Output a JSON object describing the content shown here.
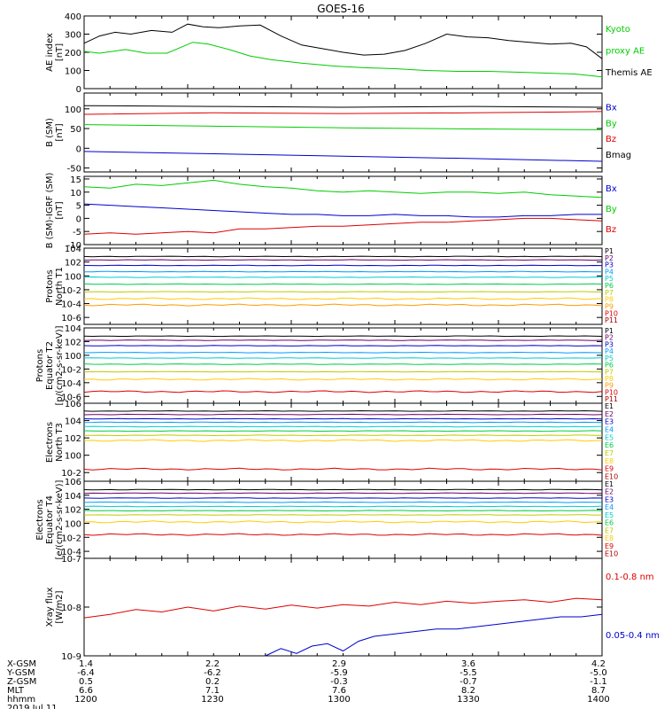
{
  "title": "GOES-16",
  "chart_data": {
    "type": "line",
    "x_time_ticks": [
      "1200",
      "1230",
      "1300",
      "1330",
      "1400"
    ],
    "footer": {
      "row_labels": [
        "X-GSM",
        "Y-GSM",
        "Z-GSM",
        "MLT",
        "hhmm",
        "2019 Jul 11"
      ],
      "columns": [
        [
          "1.4",
          "-6.4",
          "0.5",
          "6.6",
          "1200"
        ],
        [
          "2.2",
          "-6.2",
          "0.2",
          "7.1",
          "1230"
        ],
        [
          "2.9",
          "-5.9",
          "-0.3",
          "7.6",
          "1300"
        ],
        [
          "3.6",
          "-5.5",
          "-0.7",
          "8.2",
          "1330"
        ],
        [
          "4.2",
          "-5.0",
          "-1.1",
          "8.7",
          "1400"
        ]
      ]
    },
    "panels": [
      {
        "ylabel": [
          "AE index",
          "[nT]"
        ],
        "scale": "linear",
        "ylim": [
          0,
          400
        ],
        "ticks": [
          0,
          100,
          200,
          300,
          400
        ],
        "tick_labels": [
          "0",
          "100",
          "200",
          "300",
          "400"
        ],
        "legend": [
          {
            "label": "Kyoto",
            "color": "#00cc00"
          },
          {
            "label": "proxy AE",
            "color": "#00cc00"
          },
          {
            "label": "Themis AE",
            "color": "#000000"
          }
        ],
        "series": [
          {
            "name": "Themis AE",
            "color": "#000000",
            "x": [
              0,
              0.03,
              0.06,
              0.09,
              0.13,
              0.17,
              0.2,
              0.23,
              0.26,
              0.3,
              0.34,
              0.38,
              0.42,
              0.46,
              0.5,
              0.54,
              0.58,
              0.62,
              0.66,
              0.7,
              0.74,
              0.78,
              0.82,
              0.86,
              0.9,
              0.94,
              0.97,
              1
            ],
            "y": [
              250,
              290,
              310,
              300,
              320,
              310,
              355,
              340,
              335,
              345,
              350,
              290,
              240,
              220,
              200,
              185,
              190,
              210,
              250,
              300,
              285,
              280,
              265,
              255,
              245,
              250,
              230,
              165
            ]
          },
          {
            "name": "Kyoto proxy AE",
            "color": "#00cc00",
            "x": [
              0,
              0.03,
              0.08,
              0.12,
              0.16,
              0.21,
              0.24,
              0.28,
              0.32,
              0.36,
              0.42,
              0.48,
              0.54,
              0.6,
              0.66,
              0.72,
              0.78,
              0.84,
              0.9,
              0.95,
              1
            ],
            "y": [
              205,
              195,
              215,
              195,
              195,
              255,
              245,
              215,
              180,
              160,
              140,
              125,
              115,
              110,
              100,
              95,
              95,
              90,
              85,
              80,
              65
            ]
          }
        ]
      },
      {
        "ylabel": [
          "B (SM)",
          "[nT]"
        ],
        "scale": "linear",
        "ylim": [
          -60,
          140
        ],
        "ticks": [
          -50,
          0,
          50,
          100
        ],
        "tick_labels": [
          "-50",
          "0",
          "50",
          "100"
        ],
        "legend": [
          {
            "label": "Bx",
            "color": "#0000cc"
          },
          {
            "label": "By",
            "color": "#00cc00"
          },
          {
            "label": "Bz",
            "color": "#dd0000"
          },
          {
            "label": "Bmag",
            "color": "#000000"
          }
        ],
        "series": [
          {
            "name": "Bmag",
            "color": "#000000",
            "x": [
              0,
              0.25,
              0.5,
              0.75,
              1
            ],
            "y": [
              108,
              106,
              104,
              106,
              104
            ]
          },
          {
            "name": "Bz",
            "color": "#dd0000",
            "x": [
              0,
              0.25,
              0.5,
              0.75,
              1
            ],
            "y": [
              86,
              90,
              88,
              90,
              93
            ]
          },
          {
            "name": "By",
            "color": "#00cc00",
            "x": [
              0,
              0.25,
              0.5,
              0.75,
              1
            ],
            "y": [
              60,
              56,
              52,
              49,
              47
            ]
          },
          {
            "name": "Bx",
            "color": "#0000cc",
            "x": [
              0,
              0.25,
              0.5,
              0.75,
              1
            ],
            "y": [
              -8,
              -14,
              -20,
              -26,
              -33
            ]
          }
        ]
      },
      {
        "ylabel": [
          "B (SM)-IGRF (SM)",
          "[nT]"
        ],
        "scale": "linear",
        "ylim": [
          -10,
          16
        ],
        "ticks": [
          -10,
          -5,
          0,
          5,
          10,
          15
        ],
        "tick_labels": [
          "-10",
          "-5",
          "0",
          "5",
          "10",
          "15"
        ],
        "legend": [
          {
            "label": "Bx",
            "color": "#0000cc"
          },
          {
            "label": "By",
            "color": "#00cc00"
          },
          {
            "label": "Bz",
            "color": "#dd0000"
          }
        ],
        "series": [
          {
            "name": "By",
            "color": "#00cc00",
            "x": [
              0,
              0.05,
              0.1,
              0.15,
              0.2,
              0.25,
              0.3,
              0.35,
              0.4,
              0.45,
              0.5,
              0.55,
              0.6,
              0.65,
              0.7,
              0.75,
              0.8,
              0.85,
              0.9,
              0.95,
              1
            ],
            "y": [
              12,
              11.5,
              13,
              12.5,
              13.5,
              14.5,
              13,
              12,
              11.5,
              10.5,
              10,
              10.5,
              10,
              9.5,
              10,
              10,
              9.5,
              10,
              9,
              8.5,
              8
            ]
          },
          {
            "name": "Bx",
            "color": "#0000cc",
            "x": [
              0,
              0.05,
              0.1,
              0.15,
              0.2,
              0.25,
              0.3,
              0.35,
              0.4,
              0.45,
              0.5,
              0.55,
              0.6,
              0.65,
              0.7,
              0.75,
              0.8,
              0.85,
              0.9,
              0.95,
              1
            ],
            "y": [
              5.5,
              5,
              4.5,
              4,
              3.5,
              3,
              2.5,
              2,
              1.5,
              1.5,
              1,
              1,
              1.5,
              1,
              1,
              0.5,
              0.5,
              1,
              1,
              1.5,
              1.5
            ]
          },
          {
            "name": "Bz",
            "color": "#dd0000",
            "x": [
              0,
              0.05,
              0.1,
              0.15,
              0.2,
              0.25,
              0.3,
              0.35,
              0.4,
              0.45,
              0.5,
              0.55,
              0.6,
              0.65,
              0.7,
              0.75,
              0.8,
              0.85,
              0.9,
              0.95,
              1
            ],
            "y": [
              -6,
              -5.5,
              -6,
              -5.5,
              -5,
              -5.5,
              -4,
              -4,
              -3.5,
              -3,
              -3,
              -2.5,
              -2,
              -1.5,
              -1.5,
              -1,
              -0.5,
              0,
              0,
              -0.5,
              -1
            ]
          }
        ]
      },
      {
        "ylabel": [
          "Protons",
          "North T1"
        ],
        "scale": "log",
        "ylim": [
          -7,
          4
        ],
        "ticks": [
          -6,
          -4,
          -2,
          0,
          2,
          4
        ],
        "tick_labels": [
          "10-6",
          "10-4",
          "10-2",
          "100",
          "102",
          "104"
        ],
        "channels": [
          {
            "name": "P1",
            "color": "#000000",
            "level": 2.8
          },
          {
            "name": "P2",
            "color": "#6a006a",
            "level": 2.3
          },
          {
            "name": "P3",
            "color": "#0000cc",
            "level": 1.5
          },
          {
            "name": "P4",
            "color": "#0099ff",
            "level": 0.6
          },
          {
            "name": "P5",
            "color": "#00cccc",
            "level": -0.2
          },
          {
            "name": "P6",
            "color": "#00cc44",
            "level": -1.2
          },
          {
            "name": "P7",
            "color": "#bbcc00",
            "level": -2.3
          },
          {
            "name": "P8",
            "color": "#ffcc00",
            "level": -3.3
          },
          {
            "name": "P9",
            "color": "#ff9900",
            "level": -4.2
          },
          {
            "name": "P10",
            "color": "#dd0000",
            "level": null
          },
          {
            "name": "P11",
            "color": "#aa0000",
            "level": null
          }
        ]
      },
      {
        "ylabel": [
          "Protons",
          "Equator T2",
          "[p/(cm2-s-sr-keV)]"
        ],
        "scale": "log",
        "ylim": [
          -7,
          4
        ],
        "ticks": [
          -6,
          -4,
          -2,
          0,
          2,
          4
        ],
        "tick_labels": [
          "10-6",
          "10-4",
          "10-2",
          "100",
          "102",
          "104"
        ],
        "channels": [
          {
            "name": "P1",
            "color": "#000000",
            "level": 2.8
          },
          {
            "name": "P2",
            "color": "#6a006a",
            "level": 2.2
          },
          {
            "name": "P3",
            "color": "#0000cc",
            "level": 1.4
          },
          {
            "name": "P4",
            "color": "#0099ff",
            "level": 0.4
          },
          {
            "name": "P5",
            "color": "#00cccc",
            "level": -0.4
          },
          {
            "name": "P6",
            "color": "#00cc44",
            "level": -1.3
          },
          {
            "name": "P7",
            "color": "#bbcc00",
            "level": -2.4
          },
          {
            "name": "P8",
            "color": "#ffcc00",
            "level": -3.5
          },
          {
            "name": "P9",
            "color": "#ff9900",
            "level": null
          },
          {
            "name": "P10",
            "color": "#dd0000",
            "level": -5.3
          },
          {
            "name": "P11",
            "color": "#aa0000",
            "level": null
          }
        ]
      },
      {
        "ylabel": [
          "Electrons",
          "North T3"
        ],
        "scale": "log",
        "ylim": [
          -3,
          6
        ],
        "ticks": [
          -2,
          0,
          2,
          4,
          6
        ],
        "tick_labels": [
          "10-2",
          "100",
          "102",
          "104",
          "106"
        ],
        "channels": [
          {
            "name": "E1",
            "color": "#000000",
            "level": 5.1
          },
          {
            "name": "E2",
            "color": "#6a006a",
            "level": 4.7
          },
          {
            "name": "E3",
            "color": "#0000cc",
            "level": 4.2
          },
          {
            "name": "E4",
            "color": "#0099ff",
            "level": 3.8
          },
          {
            "name": "E5",
            "color": "#00cccc",
            "level": 3.3
          },
          {
            "name": "E6",
            "color": "#00cc44",
            "level": 2.8
          },
          {
            "name": "E7",
            "color": "#bbcc00",
            "level": 2.3
          },
          {
            "name": "E8",
            "color": "#ffcc00",
            "level": 1.7
          },
          {
            "name": "E9",
            "color": "#dd0000",
            "level": -1.6
          },
          {
            "name": "E10",
            "color": "#aa0000",
            "level": null
          }
        ]
      },
      {
        "ylabel": [
          "Electrons",
          "Equator T4",
          "[e/(cm2-s-sr-keV)]"
        ],
        "scale": "log",
        "ylim": [
          -5,
          6
        ],
        "ticks": [
          -4,
          -2,
          0,
          2,
          4,
          6
        ],
        "tick_labels": [
          "10-4",
          "10-2",
          "100",
          "102",
          "104",
          "106"
        ],
        "channels": [
          {
            "name": "E1",
            "color": "#000000",
            "level": 4.8
          },
          {
            "name": "E2",
            "color": "#6a006a",
            "level": 4.3
          },
          {
            "name": "E3",
            "color": "#0000cc",
            "level": 3.6
          },
          {
            "name": "E4",
            "color": "#0099ff",
            "level": 3.0
          },
          {
            "name": "E5",
            "color": "#00cccc",
            "level": 2.4
          },
          {
            "name": "E6",
            "color": "#00cc44",
            "level": 1.8
          },
          {
            "name": "E7",
            "color": "#bbcc00",
            "level": 1.2
          },
          {
            "name": "E8",
            "color": "#ffcc00",
            "level": 0.2
          },
          {
            "name": "E9",
            "color": "#dd0000",
            "level": -1.6
          },
          {
            "name": "E10",
            "color": "#aa0000",
            "level": null
          }
        ]
      },
      {
        "ylabel": [
          "Xray flux",
          "[W/m2]"
        ],
        "scale": "log",
        "ylim": [
          -9,
          -7
        ],
        "ticks": [
          -9,
          -8,
          -7
        ],
        "tick_labels": [
          "10-9",
          "10-8",
          "10-7"
        ],
        "legend": [
          {
            "label": "0.1-0.8 nm",
            "color": "#dd0000"
          },
          {
            "label": "0.05-0.4 nm",
            "color": "#0000cc"
          }
        ],
        "series": [
          {
            "name": "0.1-0.8 nm",
            "color": "#dd0000",
            "x": [
              0,
              0.05,
              0.1,
              0.15,
              0.2,
              0.25,
              0.3,
              0.35,
              0.4,
              0.45,
              0.5,
              0.55,
              0.6,
              0.65,
              0.7,
              0.75,
              0.8,
              0.85,
              0.9,
              0.95,
              1
            ],
            "y": [
              -8.22,
              -8.15,
              -8.05,
              -8.1,
              -8.0,
              -8.08,
              -7.98,
              -8.04,
              -7.96,
              -8.02,
              -7.95,
              -7.98,
              -7.9,
              -7.95,
              -7.88,
              -7.92,
              -7.88,
              -7.85,
              -7.9,
              -7.82,
              -7.85
            ]
          },
          {
            "name": "0.05-0.4 nm",
            "color": "#0000cc",
            "x": [
              0.35,
              0.38,
              0.41,
              0.44,
              0.47,
              0.5,
              0.53,
              0.56,
              0.6,
              0.64,
              0.68,
              0.72,
              0.76,
              0.8,
              0.84,
              0.88,
              0.92,
              0.96,
              1
            ],
            "y": [
              -9.0,
              -8.85,
              -8.95,
              -8.8,
              -8.75,
              -8.9,
              -8.7,
              -8.6,
              -8.55,
              -8.5,
              -8.45,
              -8.45,
              -8.4,
              -8.35,
              -8.3,
              -8.25,
              -8.2,
              -8.2,
              -8.15
            ]
          }
        ]
      }
    ]
  }
}
